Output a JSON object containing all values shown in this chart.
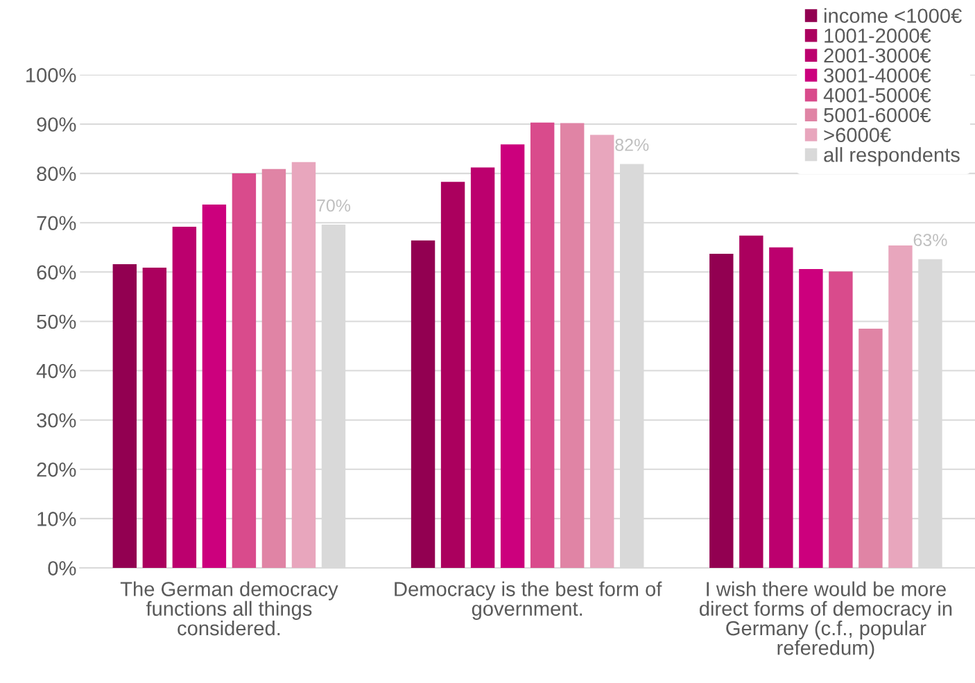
{
  "chart_data": {
    "type": "bar",
    "categories": [
      "The German democracy functions all things considered.",
      "Democracy is the best form of government.",
      "I wish there would be more direct forms of democracy in Germany (c.f., popular referedum)"
    ],
    "series": [
      {
        "name": "income <1000€",
        "color": "#920051",
        "values": [
          61.6,
          66.4,
          63.7
        ]
      },
      {
        "name": "1001-2000€",
        "color": "#ab005e",
        "values": [
          60.9,
          78.3,
          67.4
        ]
      },
      {
        "name": "2001-3000€",
        "color": "#bc006e",
        "values": [
          69.2,
          81.2,
          65.0
        ]
      },
      {
        "name": "3001-4000€",
        "color": "#cc007d",
        "values": [
          73.7,
          85.9,
          60.6
        ]
      },
      {
        "name": "4001-5000€",
        "color": "#d94b8c",
        "values": [
          80.0,
          90.3,
          60.1
        ]
      },
      {
        "name": "5001-6000€",
        "color": "#e084a5",
        "values": [
          80.9,
          90.2,
          48.5
        ]
      },
      {
        "name": ">6000€",
        "color": "#e8a6bd",
        "values": [
          82.3,
          87.8,
          65.4
        ]
      },
      {
        "name": "all respondents",
        "color": "#d9d9d9",
        "values": [
          69.6,
          81.9,
          62.6
        ],
        "value_labels": [
          "70%",
          "82%",
          "63%"
        ]
      }
    ],
    "ylim": [
      0,
      100
    ],
    "yticks": [
      {
        "value": 0,
        "label": "0%"
      },
      {
        "value": 10,
        "label": "10%"
      },
      {
        "value": 20,
        "label": "20%"
      },
      {
        "value": 30,
        "label": "30%"
      },
      {
        "value": 40,
        "label": "40%"
      },
      {
        "value": 50,
        "label": "50%"
      },
      {
        "value": 60,
        "label": "60%"
      },
      {
        "value": 70,
        "label": "70%"
      },
      {
        "value": 80,
        "label": "80%"
      },
      {
        "value": 90,
        "label": "90%"
      },
      {
        "value": 100,
        "label": "100%"
      }
    ],
    "grid": "y",
    "legend": "top right"
  }
}
